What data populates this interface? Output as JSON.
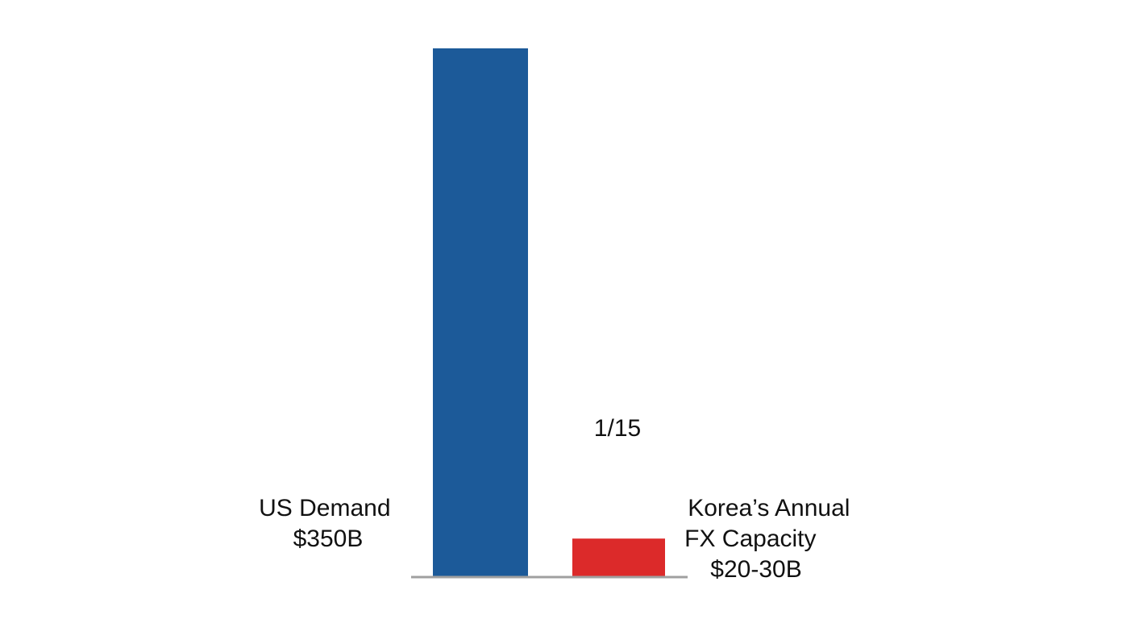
{
  "chart_data": {
    "type": "bar",
    "categories": [
      "US Demand",
      "Korea’s Annual FX Capacity"
    ],
    "values": [
      350,
      25
    ],
    "bar_labels": [
      [
        "US Demand",
        "$350B"
      ],
      [
        "Korea’s Annual",
        "FX Capacity",
        "$20-30B"
      ]
    ],
    "annotation": "1/15",
    "colors": [
      "#1c5a99",
      "#dc2a2a"
    ],
    "axis_color": "#a0a0a0",
    "ylim": [
      0,
      350
    ],
    "grid": false,
    "legend": "none"
  }
}
